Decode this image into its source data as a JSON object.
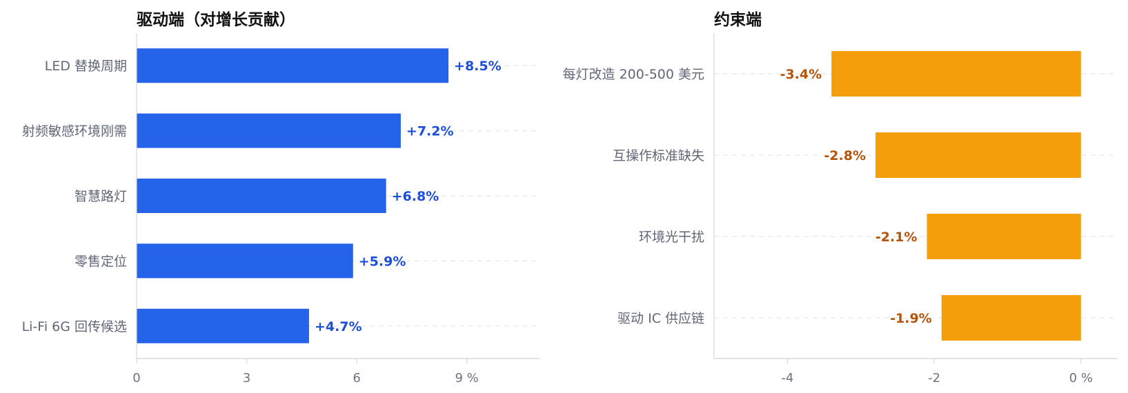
{
  "chart_data": [
    {
      "type": "bar",
      "orientation": "horizontal",
      "title": "驱动端（对增长贡献）",
      "categories": [
        "LED 替换周期",
        "射频敏感环境刚需",
        "智慧路灯",
        "零售定位",
        "Li-Fi 6G 回传候选"
      ],
      "values": [
        8.5,
        7.2,
        6.8,
        5.9,
        4.7
      ],
      "value_labels": [
        "+8.5%",
        "+7.2%",
        "+6.8%",
        "+5.9%",
        "+4.7%"
      ],
      "xlim": [
        0,
        11
      ],
      "xticks": [
        0,
        3,
        6,
        9
      ],
      "xtick_labels": [
        "0",
        "3",
        "6",
        "9 %"
      ],
      "color": "#2563eb",
      "label_color": "#1d4ed8",
      "grid": "dashed horizontal"
    },
    {
      "type": "bar",
      "orientation": "horizontal",
      "title": "约束端",
      "categories": [
        "每灯改造 200-500 美元",
        "互操作标准缺失",
        "环境光干扰",
        "驱动 IC 供应链"
      ],
      "values": [
        -3.4,
        -2.8,
        -2.1,
        -1.9
      ],
      "value_labels": [
        "-3.4%",
        "-2.8%",
        "-2.1%",
        "-1.9%"
      ],
      "xlim": [
        -5,
        0.5
      ],
      "xticks": [
        -4,
        -2,
        0
      ],
      "xtick_labels": [
        "-4",
        "-2",
        "0 %"
      ],
      "color": "#f59e0b",
      "label_color": "#b45309",
      "grid": "dashed horizontal"
    }
  ]
}
